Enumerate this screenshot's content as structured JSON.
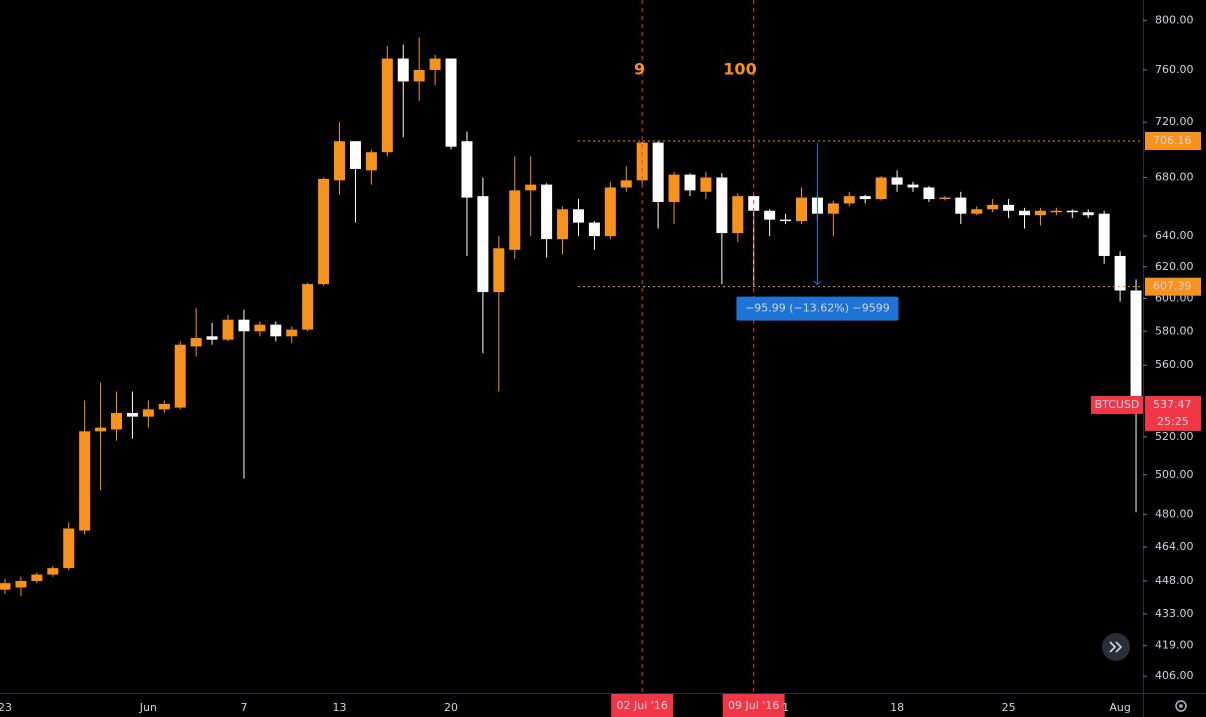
{
  "chart_data": {
    "type": "candlestick",
    "log_scale": true,
    "colors": {
      "up": "#f7931a",
      "down": "#ffffff",
      "highlight": "#f23645",
      "measure": "#1e74d4"
    },
    "categories": [
      "23",
      null,
      null,
      null,
      null,
      null,
      null,
      null,
      null,
      "Jun",
      null,
      null,
      null,
      null,
      null,
      "7",
      null,
      null,
      null,
      null,
      null,
      "13",
      null,
      null,
      null,
      null,
      null,
      null,
      "20",
      null,
      null,
      null,
      null,
      null,
      null,
      null,
      null,
      null,
      null,
      null,
      "02 Jul '16",
      null,
      null,
      null,
      null,
      null,
      null,
      "09 Jul '16",
      null,
      "1",
      null,
      null,
      null,
      null,
      null,
      null,
      "18",
      null,
      null,
      null,
      null,
      null,
      null,
      "25",
      null,
      null,
      null,
      null,
      null,
      null,
      "Aug",
      null
    ],
    "open": [
      444,
      445,
      448,
      451,
      454,
      472,
      523,
      524,
      533,
      531,
      535,
      536,
      571,
      577,
      575,
      587,
      580,
      584,
      577,
      581,
      609,
      678,
      706,
      685,
      698,
      769,
      751,
      760,
      769,
      706,
      667,
      604,
      631,
      671,
      675,
      638,
      658,
      649,
      640,
      673,
      678,
      705,
      663,
      682,
      670,
      680,
      642,
      667,
      657,
      651,
      650,
      666,
      655,
      662,
      667,
      665,
      680,
      675,
      673,
      665,
      666,
      655,
      658,
      661,
      657,
      654,
      656,
      657,
      656,
      655,
      627,
      605
    ],
    "high": [
      449,
      450,
      452,
      455,
      476,
      540,
      550,
      545,
      545,
      540,
      540,
      574,
      594,
      585,
      590,
      593,
      586,
      586,
      583,
      610,
      680,
      720,
      706,
      700,
      779,
      780,
      786,
      772,
      769,
      713,
      680,
      640,
      695,
      695,
      676,
      660,
      665,
      650,
      677,
      688,
      706,
      706,
      684,
      683,
      684,
      683,
      669,
      668,
      658,
      655,
      673,
      670,
      664,
      670,
      668,
      681,
      685,
      677,
      674,
      667,
      670,
      660,
      665,
      665,
      659,
      659,
      659,
      658,
      658,
      657,
      630,
      612
    ],
    "low": [
      442,
      441,
      447,
      450,
      453,
      470,
      492,
      518,
      519,
      525,
      533,
      535,
      565,
      572,
      574,
      498,
      577,
      574,
      573,
      580,
      608,
      668,
      649,
      675,
      695,
      709,
      736,
      748,
      700,
      627,
      567,
      545,
      625,
      640,
      626,
      628,
      640,
      631,
      638,
      670,
      675,
      645,
      648,
      667,
      665,
      609,
      636,
      608,
      640,
      648,
      648,
      650,
      640,
      660,
      662,
      664,
      670,
      670,
      663,
      664,
      648,
      654,
      656,
      652,
      645,
      647,
      654,
      652,
      652,
      622,
      598,
      481
    ],
    "close": [
      447,
      448,
      451,
      454,
      473,
      523,
      525,
      533,
      531,
      535,
      538,
      572,
      576,
      575,
      587,
      580,
      584,
      577,
      581,
      609,
      679,
      706,
      686,
      698,
      769,
      751,
      760,
      769,
      702,
      666,
      604,
      632,
      671,
      675,
      638,
      658,
      649,
      640,
      673,
      678,
      705,
      663,
      682,
      671,
      680,
      642,
      667,
      657,
      651,
      650,
      666,
      655,
      662,
      667,
      665,
      680,
      675,
      673,
      665,
      666,
      655,
      658,
      661,
      657,
      654,
      657,
      657,
      656,
      654,
      627,
      605,
      537.47
    ],
    "ylim": [
      399,
      817
    ],
    "yticks": [
      {
        "value": 800,
        "label": "800.00"
      },
      {
        "value": 760,
        "label": "760.00"
      },
      {
        "value": 720,
        "label": "720.00"
      },
      {
        "value": 680,
        "label": "680.00"
      },
      {
        "value": 640,
        "label": "640.00"
      },
      {
        "value": 620,
        "label": "620.00"
      },
      {
        "value": 600,
        "label": "600.00"
      },
      {
        "value": 580,
        "label": "580.00"
      },
      {
        "value": 560,
        "label": "560.00"
      },
      {
        "value": 520,
        "label": "520.00"
      },
      {
        "value": 500,
        "label": "500.00"
      },
      {
        "value": 480,
        "label": "480.00"
      },
      {
        "value": 464,
        "label": "464.00"
      },
      {
        "value": 448,
        "label": "448.00"
      },
      {
        "value": 433,
        "label": "433.00"
      },
      {
        "value": 419,
        "label": "419.00"
      },
      {
        "value": 406,
        "label": "406.00"
      }
    ],
    "price_lines": [
      706.16,
      607.39
    ],
    "crosshairs": [
      {
        "category": "02 Jul '16",
        "annotation": 9
      },
      {
        "category": "09 Jul '16",
        "annotation": 100
      }
    ],
    "measure": "−95.99 (−13.62%) −9599",
    "symbol": "BTCUSD",
    "countdown": "25:25"
  }
}
